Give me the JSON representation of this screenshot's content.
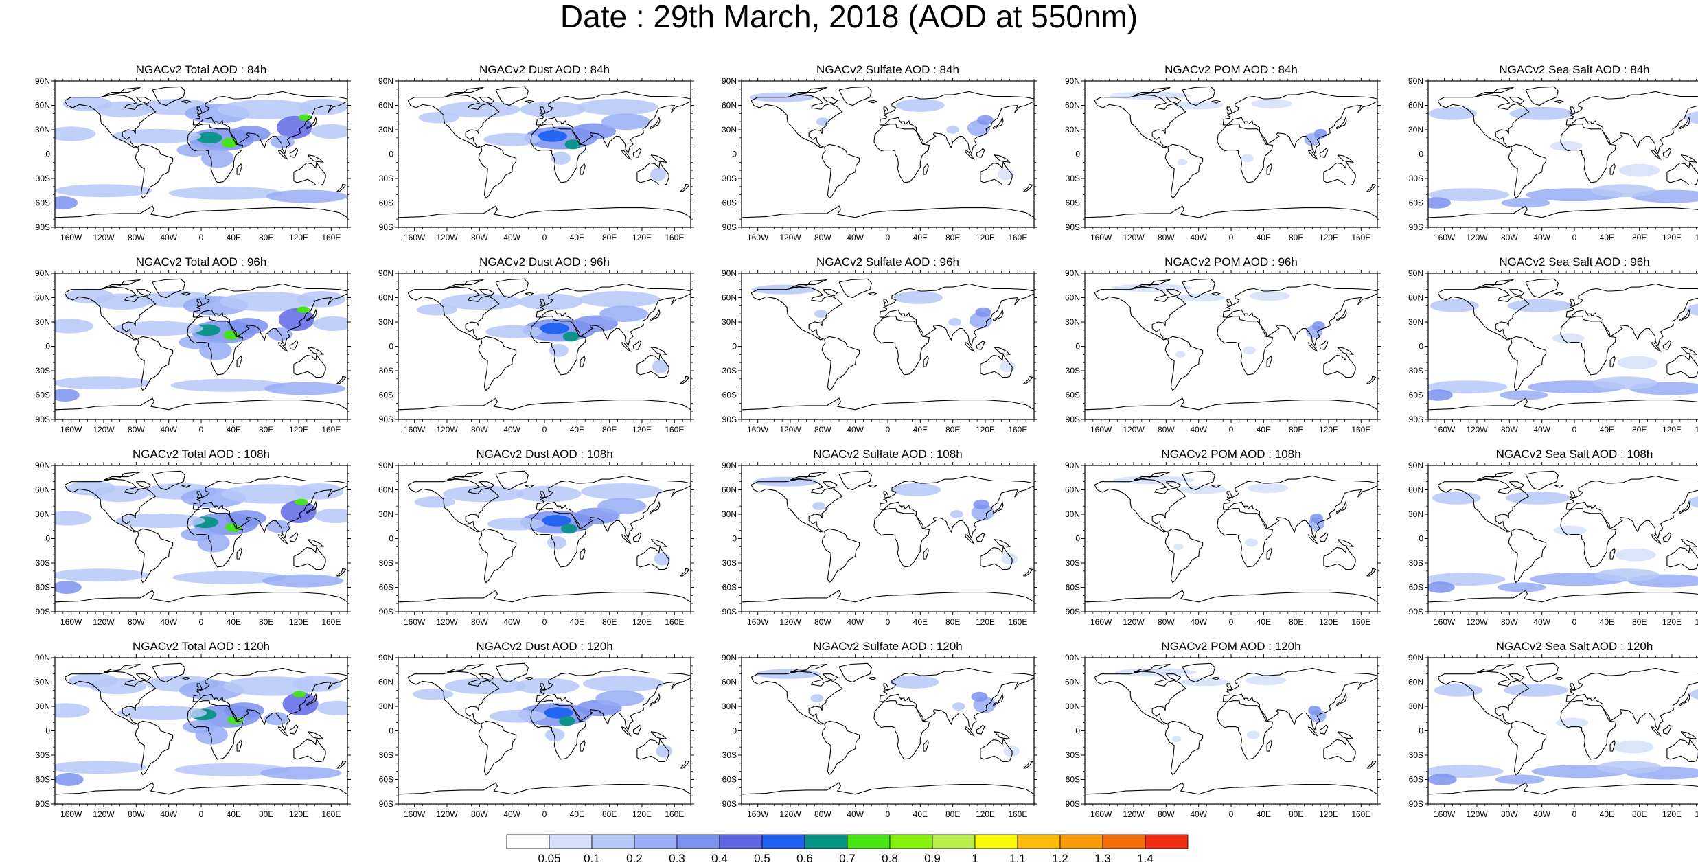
{
  "title": "Date : 29th March, 2018 (AOD at 550nm)",
  "lat_labels": [
    "90N",
    "60N",
    "30N",
    "0",
    "30S",
    "60S",
    "90S"
  ],
  "lon_labels": [
    "160W",
    "120W",
    "80W",
    "40W",
    "0",
    "40E",
    "80E",
    "120E",
    "160E"
  ],
  "panels": [
    {
      "title": "NGACv2 Total AOD : 84h",
      "species": "total",
      "hour": 84
    },
    {
      "title": "NGACv2 Dust AOD : 84h",
      "species": "dust",
      "hour": 84
    },
    {
      "title": "NGACv2 Sulfate AOD : 84h",
      "species": "sulfate",
      "hour": 84
    },
    {
      "title": "NGACv2 POM AOD : 84h",
      "species": "pom",
      "hour": 84
    },
    {
      "title": "NGACv2 Sea Salt AOD : 84h",
      "species": "seasalt",
      "hour": 84
    },
    {
      "title": "NGACv2 Total AOD : 96h",
      "species": "total",
      "hour": 96
    },
    {
      "title": "NGACv2 Dust AOD : 96h",
      "species": "dust",
      "hour": 96
    },
    {
      "title": "NGACv2 Sulfate AOD : 96h",
      "species": "sulfate",
      "hour": 96
    },
    {
      "title": "NGACv2 POM AOD : 96h",
      "species": "pom",
      "hour": 96
    },
    {
      "title": "NGACv2 Sea Salt AOD : 96h",
      "species": "seasalt",
      "hour": 96
    },
    {
      "title": "NGACv2 Total AOD : 108h",
      "species": "total",
      "hour": 108
    },
    {
      "title": "NGACv2 Dust AOD : 108h",
      "species": "dust",
      "hour": 108
    },
    {
      "title": "NGACv2 Sulfate AOD : 108h",
      "species": "sulfate",
      "hour": 108
    },
    {
      "title": "NGACv2 POM AOD : 108h",
      "species": "pom",
      "hour": 108
    },
    {
      "title": "NGACv2 Sea Salt AOD : 108h",
      "species": "seasalt",
      "hour": 108
    },
    {
      "title": "NGACv2 Total AOD : 120h",
      "species": "total",
      "hour": 120
    },
    {
      "title": "NGACv2 Dust AOD : 120h",
      "species": "dust",
      "hour": 120
    },
    {
      "title": "NGACv2 Sulfate AOD : 120h",
      "species": "sulfate",
      "hour": 120
    },
    {
      "title": "NGACv2 POM AOD : 120h",
      "species": "pom",
      "hour": 120
    },
    {
      "title": "NGACv2 Sea Salt  AOD : 120h",
      "species": "seasalt",
      "hour": 120
    }
  ],
  "colorbar": {
    "labels": [
      "0.05",
      "0.1",
      "0.2",
      "0.3",
      "0.4",
      "0.5",
      "0.6",
      "0.7",
      "0.8",
      "0.9",
      "1",
      "1.1",
      "1.2",
      "1.3",
      "1.4"
    ],
    "colors": [
      "#ffffff",
      "#d4e0fc",
      "#b6c8f8",
      "#97adf4",
      "#7b92ee",
      "#5f67e6",
      "#1f62f0",
      "#079487",
      "#45e612",
      "#86f20c",
      "#b7f048",
      "#fafa06",
      "#fbbb08",
      "#f89a05",
      "#f46d06",
      "#f12d13"
    ]
  }
}
